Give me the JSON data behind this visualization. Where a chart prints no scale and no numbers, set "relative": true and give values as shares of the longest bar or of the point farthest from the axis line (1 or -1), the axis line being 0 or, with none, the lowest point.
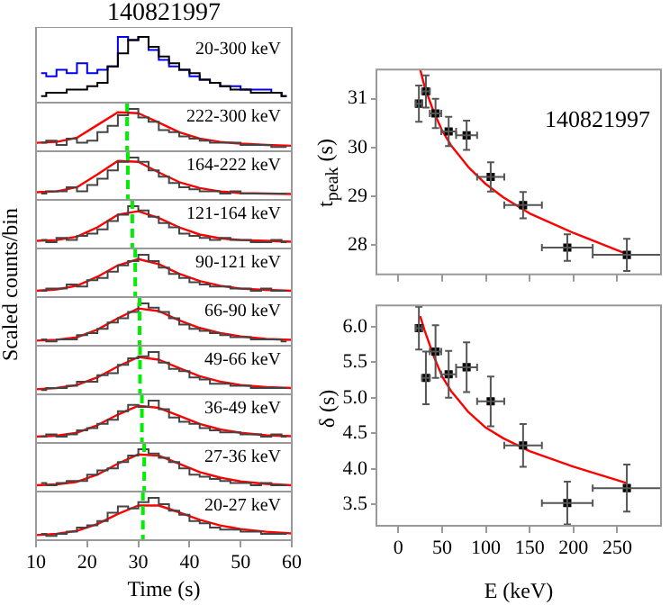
{
  "chart_data": [
    {
      "type": "step",
      "title": "140821997",
      "ylabel": "Scaled counts/bin",
      "relative": true,
      "tick_labels": false,
      "xlim": [
        10,
        60
      ],
      "xticks": [
        10,
        20,
        30,
        40,
        50,
        60
      ],
      "x": [
        11,
        13,
        15,
        17,
        19,
        21,
        23,
        25,
        27,
        29,
        31,
        33,
        35,
        37,
        39,
        41,
        43,
        45,
        47,
        49,
        51,
        53,
        55,
        57,
        59
      ],
      "annotations": [
        "20-300 keV"
      ],
      "series": [
        {
          "color": "#000000",
          "values": [
            0.1,
            0.15,
            0.15,
            0.2,
            0.2,
            0.25,
            0.3,
            0.55,
            0.75,
            0.95,
            1.0,
            0.85,
            0.7,
            0.6,
            0.5,
            0.45,
            0.35,
            0.3,
            0.25,
            0.2,
            0.2,
            0.15,
            0.15,
            0.15,
            0.1
          ]
        },
        {
          "color": "#0000ee",
          "values": [
            0.45,
            0.4,
            0.5,
            0.45,
            0.6,
            0.45,
            0.5,
            0.55,
            1.0,
            0.95,
            1.0,
            0.8,
            0.65,
            0.55,
            0.5,
            0.4,
            0.35,
            0.3,
            0.25,
            0.25,
            0.2,
            0.2,
            0.2,
            0.15,
            0.1
          ]
        }
      ]
    },
    {
      "type": "step",
      "relative": true,
      "tick_labels": false,
      "xlim": [
        10,
        60
      ],
      "xticks": [
        10,
        20,
        30,
        40,
        50,
        60
      ],
      "x": [
        11,
        13,
        15,
        17,
        19,
        21,
        23,
        25,
        27,
        29,
        31,
        33,
        35,
        37,
        39,
        41,
        43,
        45,
        47,
        49,
        51,
        53,
        55,
        57,
        59
      ],
      "annotations": [
        "222-300 keV"
      ],
      "ref_lines": [
        {
          "axis": "x",
          "value": 27.8,
          "color": "#00ee00",
          "line_style": "dashed"
        }
      ],
      "series": [
        {
          "color": "#444444",
          "values": [
            0.2,
            0.25,
            0.15,
            0.3,
            0.2,
            0.25,
            0.45,
            0.6,
            0.85,
            1.0,
            0.8,
            0.7,
            0.5,
            0.45,
            0.35,
            0.3,
            0.25,
            0.2,
            0.2,
            0.2,
            0.15,
            0.15,
            0.15,
            0.1,
            0.1
          ]
        },
        {
          "type": "line",
          "color": "#ff0000",
          "x": [
            10,
            14,
            18,
            22,
            26,
            30,
            34,
            38,
            42,
            46,
            50,
            55,
            60
          ],
          "values": [
            0.2,
            0.22,
            0.32,
            0.62,
            0.92,
            0.9,
            0.68,
            0.45,
            0.3,
            0.22,
            0.18,
            0.15,
            0.13
          ]
        }
      ]
    },
    {
      "type": "step",
      "relative": true,
      "tick_labels": false,
      "xlim": [
        10,
        60
      ],
      "xticks": [
        10,
        20,
        30,
        40,
        50,
        60
      ],
      "x": [
        11,
        13,
        15,
        17,
        19,
        21,
        23,
        25,
        27,
        29,
        31,
        33,
        35,
        37,
        39,
        41,
        43,
        45,
        47,
        49,
        51,
        53,
        55,
        57,
        59
      ],
      "annotations": [
        "164-222 keV"
      ],
      "ref_lines": [
        {
          "axis": "x",
          "value": 27.95,
          "color": "#00ee00",
          "line_style": "dashed"
        }
      ],
      "series": [
        {
          "color": "#444444",
          "values": [
            0.15,
            0.2,
            0.2,
            0.3,
            0.2,
            0.35,
            0.5,
            0.7,
            0.9,
            1.0,
            0.9,
            0.7,
            0.55,
            0.4,
            0.3,
            0.25,
            0.2,
            0.2,
            0.15,
            0.2,
            0.15,
            0.15,
            0.15,
            0.15,
            0.15
          ]
        },
        {
          "type": "line",
          "color": "#ff0000",
          "x": [
            10,
            14,
            18,
            22,
            26,
            30,
            34,
            38,
            42,
            46,
            50,
            55,
            60
          ],
          "values": [
            0.18,
            0.2,
            0.3,
            0.6,
            0.92,
            0.9,
            0.65,
            0.42,
            0.28,
            0.2,
            0.16,
            0.15,
            0.14
          ]
        }
      ]
    },
    {
      "type": "step",
      "relative": true,
      "tick_labels": false,
      "xlim": [
        10,
        60
      ],
      "xticks": [
        10,
        20,
        30,
        40,
        50,
        60
      ],
      "x": [
        11,
        13,
        15,
        17,
        19,
        21,
        23,
        25,
        27,
        29,
        31,
        33,
        35,
        37,
        39,
        41,
        43,
        45,
        47,
        49,
        51,
        53,
        55,
        57,
        59
      ],
      "annotations": [
        "121-164 keV"
      ],
      "ref_lines": [
        {
          "axis": "x",
          "value": 28.82,
          "color": "#00ee00",
          "line_style": "dashed"
        }
      ],
      "series": [
        {
          "color": "#444444",
          "values": [
            0.2,
            0.15,
            0.25,
            0.2,
            0.3,
            0.35,
            0.45,
            0.65,
            0.8,
            1.0,
            0.9,
            0.75,
            0.6,
            0.5,
            0.35,
            0.3,
            0.25,
            0.2,
            0.25,
            0.2,
            0.2,
            0.15,
            0.15,
            0.2,
            0.15
          ]
        },
        {
          "type": "line",
          "color": "#ff0000",
          "x": [
            10,
            14,
            18,
            22,
            26,
            30,
            34,
            38,
            42,
            46,
            50,
            55,
            60
          ],
          "values": [
            0.18,
            0.2,
            0.28,
            0.5,
            0.8,
            0.88,
            0.72,
            0.5,
            0.33,
            0.24,
            0.2,
            0.18,
            0.16
          ]
        }
      ]
    },
    {
      "type": "step",
      "relative": true,
      "tick_labels": false,
      "xlim": [
        10,
        60
      ],
      "xticks": [
        10,
        20,
        30,
        40,
        50,
        60
      ],
      "x": [
        11,
        13,
        15,
        17,
        19,
        21,
        23,
        25,
        27,
        29,
        31,
        33,
        35,
        37,
        39,
        41,
        43,
        45,
        47,
        49,
        51,
        53,
        55,
        57,
        59
      ],
      "annotations": [
        "90-121 keV"
      ],
      "ref_lines": [
        {
          "axis": "x",
          "value": 29.4,
          "color": "#00ee00",
          "line_style": "dashed"
        }
      ],
      "series": [
        {
          "color": "#444444",
          "values": [
            0.15,
            0.2,
            0.2,
            0.3,
            0.25,
            0.4,
            0.45,
            0.6,
            0.75,
            0.85,
            1.0,
            0.85,
            0.7,
            0.55,
            0.45,
            0.35,
            0.3,
            0.25,
            0.25,
            0.2,
            0.2,
            0.15,
            0.2,
            0.15,
            0.15
          ]
        },
        {
          "type": "line",
          "color": "#ff0000",
          "x": [
            10,
            14,
            18,
            22,
            26,
            30,
            34,
            38,
            42,
            46,
            50,
            55,
            60
          ],
          "values": [
            0.15,
            0.18,
            0.27,
            0.48,
            0.75,
            0.9,
            0.78,
            0.55,
            0.38,
            0.27,
            0.2,
            0.17,
            0.15
          ]
        }
      ]
    },
    {
      "type": "step",
      "relative": true,
      "tick_labels": false,
      "xlim": [
        10,
        60
      ],
      "xticks": [
        10,
        20,
        30,
        40,
        50,
        60
      ],
      "x": [
        11,
        13,
        15,
        17,
        19,
        21,
        23,
        25,
        27,
        29,
        31,
        33,
        35,
        37,
        39,
        41,
        43,
        45,
        47,
        49,
        51,
        53,
        55,
        57,
        59
      ],
      "annotations": [
        "66-90 keV"
      ],
      "ref_lines": [
        {
          "axis": "x",
          "value": 30.25,
          "color": "#00ee00",
          "line_style": "dashed"
        }
      ],
      "series": [
        {
          "color": "#444444",
          "values": [
            0.15,
            0.1,
            0.15,
            0.15,
            0.25,
            0.3,
            0.4,
            0.55,
            0.65,
            0.8,
            1.0,
            0.9,
            0.8,
            0.65,
            0.5,
            0.4,
            0.35,
            0.3,
            0.25,
            0.2,
            0.2,
            0.15,
            0.15,
            0.15,
            0.1
          ]
        },
        {
          "type": "line",
          "color": "#ff0000",
          "x": [
            10,
            14,
            18,
            22,
            26,
            30,
            34,
            38,
            42,
            46,
            50,
            55,
            60
          ],
          "values": [
            0.12,
            0.14,
            0.2,
            0.38,
            0.65,
            0.88,
            0.82,
            0.6,
            0.42,
            0.3,
            0.22,
            0.16,
            0.14
          ]
        }
      ]
    },
    {
      "type": "step",
      "relative": true,
      "tick_labels": false,
      "xlim": [
        10,
        60
      ],
      "xticks": [
        10,
        20,
        30,
        40,
        50,
        60
      ],
      "x": [
        11,
        13,
        15,
        17,
        19,
        21,
        23,
        25,
        27,
        29,
        31,
        33,
        35,
        37,
        39,
        41,
        43,
        45,
        47,
        49,
        51,
        53,
        55,
        57,
        59
      ],
      "annotations": [
        "49-66 keV"
      ],
      "ref_lines": [
        {
          "axis": "x",
          "value": 30.33,
          "color": "#00ee00",
          "line_style": "dashed"
        }
      ],
      "series": [
        {
          "color": "#444444",
          "values": [
            0.1,
            0.15,
            0.15,
            0.2,
            0.3,
            0.3,
            0.45,
            0.5,
            0.7,
            0.85,
            0.9,
            1.0,
            0.75,
            0.6,
            0.55,
            0.4,
            0.35,
            0.25,
            0.25,
            0.2,
            0.2,
            0.15,
            0.15,
            0.15,
            0.15
          ]
        },
        {
          "type": "line",
          "color": "#ff0000",
          "x": [
            10,
            14,
            18,
            22,
            26,
            30,
            34,
            38,
            42,
            46,
            50,
            55,
            60
          ],
          "values": [
            0.12,
            0.15,
            0.22,
            0.4,
            0.66,
            0.88,
            0.82,
            0.62,
            0.43,
            0.3,
            0.22,
            0.17,
            0.15
          ]
        }
      ]
    },
    {
      "type": "step",
      "relative": true,
      "tick_labels": false,
      "xlim": [
        10,
        60
      ],
      "xticks": [
        10,
        20,
        30,
        40,
        50,
        60
      ],
      "x": [
        11,
        13,
        15,
        17,
        19,
        21,
        23,
        25,
        27,
        29,
        31,
        33,
        35,
        37,
        39,
        41,
        43,
        45,
        47,
        49,
        51,
        53,
        55,
        57,
        59
      ],
      "annotations": [
        "36-49 keV"
      ],
      "ref_lines": [
        {
          "axis": "x",
          "value": 30.7,
          "color": "#00ee00",
          "line_style": "dashed"
        }
      ],
      "series": [
        {
          "color": "#444444",
          "values": [
            0.15,
            0.2,
            0.15,
            0.2,
            0.3,
            0.35,
            0.45,
            0.55,
            0.75,
            0.9,
            0.85,
            1.0,
            0.8,
            0.6,
            0.5,
            0.45,
            0.35,
            0.3,
            0.25,
            0.25,
            0.2,
            0.2,
            0.15,
            0.2,
            0.15
          ]
        },
        {
          "type": "line",
          "color": "#ff0000",
          "x": [
            10,
            14,
            18,
            22,
            26,
            30,
            34,
            38,
            42,
            46,
            50,
            55,
            60
          ],
          "values": [
            0.15,
            0.17,
            0.24,
            0.42,
            0.67,
            0.88,
            0.83,
            0.64,
            0.45,
            0.32,
            0.24,
            0.18,
            0.16
          ]
        }
      ]
    },
    {
      "type": "step",
      "relative": true,
      "tick_labels": false,
      "xlim": [
        10,
        60
      ],
      "xticks": [
        10,
        20,
        30,
        40,
        50,
        60
      ],
      "x": [
        11,
        13,
        15,
        17,
        19,
        21,
        23,
        25,
        27,
        29,
        31,
        33,
        35,
        37,
        39,
        41,
        43,
        45,
        47,
        49,
        51,
        53,
        55,
        57,
        59
      ],
      "annotations": [
        "27-36 keV"
      ],
      "ref_lines": [
        {
          "axis": "x",
          "value": 31.15,
          "color": "#00ee00",
          "line_style": "dashed"
        }
      ],
      "series": [
        {
          "color": "#444444",
          "values": [
            0.2,
            0.15,
            0.2,
            0.25,
            0.25,
            0.4,
            0.5,
            0.55,
            0.7,
            0.85,
            1.0,
            0.9,
            0.8,
            0.7,
            0.55,
            0.4,
            0.35,
            0.3,
            0.25,
            0.2,
            0.2,
            0.15,
            0.2,
            0.15,
            0.15
          ]
        },
        {
          "type": "line",
          "color": "#ff0000",
          "x": [
            10,
            14,
            18,
            22,
            26,
            30,
            34,
            38,
            42,
            46,
            50,
            55,
            60
          ],
          "values": [
            0.15,
            0.17,
            0.23,
            0.4,
            0.66,
            0.88,
            0.85,
            0.66,
            0.46,
            0.33,
            0.24,
            0.18,
            0.15
          ]
        }
      ]
    },
    {
      "type": "step",
      "relative": true,
      "tick_labels": "x",
      "xlabel": "Time (s)",
      "xlim": [
        10,
        60
      ],
      "xticks": [
        10,
        20,
        30,
        40,
        50,
        60
      ],
      "x": [
        11,
        13,
        15,
        17,
        19,
        21,
        23,
        25,
        27,
        29,
        31,
        33,
        35,
        37,
        39,
        41,
        43,
        45,
        47,
        49,
        51,
        53,
        55,
        57,
        59
      ],
      "annotations": [
        "20-27 keV"
      ],
      "ref_lines": [
        {
          "axis": "x",
          "value": 30.9,
          "color": "#00ee00",
          "line_style": "dashed"
        }
      ],
      "series": [
        {
          "color": "#444444",
          "values": [
            0.15,
            0.1,
            0.15,
            0.2,
            0.3,
            0.35,
            0.45,
            0.65,
            0.8,
            0.75,
            0.9,
            1.0,
            0.85,
            0.7,
            0.6,
            0.45,
            0.4,
            0.3,
            0.25,
            0.25,
            0.2,
            0.2,
            0.15,
            0.15,
            0.15
          ]
        },
        {
          "type": "line",
          "color": "#ff0000",
          "x": [
            10,
            14,
            18,
            22,
            26,
            30,
            34,
            38,
            42,
            46,
            50,
            55,
            60
          ],
          "values": [
            0.12,
            0.15,
            0.22,
            0.38,
            0.62,
            0.82,
            0.82,
            0.66,
            0.48,
            0.35,
            0.26,
            0.2,
            0.16
          ]
        }
      ]
    },
    {
      "type": "scatter",
      "ylabel": "t$_{peak}$ (s)",
      "tick_labels": "y",
      "marker": "square",
      "xlim": [
        -25,
        300
      ],
      "xticks": [
        0,
        50,
        100,
        150,
        200,
        250
      ],
      "ylim": [
        27.4,
        31.6
      ],
      "yticks": [
        28,
        29,
        30,
        31
      ],
      "annotations": [
        "140821997"
      ],
      "series": [
        {
          "color": "#000000",
          "x": [
            23.5,
            31.5,
            42.5,
            57.5,
            78,
            105.5,
            142.5,
            193,
            261
          ],
          "values": [
            30.9,
            31.15,
            30.7,
            30.33,
            30.25,
            29.4,
            28.82,
            27.95,
            27.8
          ],
          "errors": [
            0.37,
            0.33,
            0.3,
            0.3,
            0.3,
            0.3,
            0.27,
            0.27,
            0.33
          ],
          "xerrors": [
            3.5,
            4.5,
            6.5,
            8.5,
            12,
            15.5,
            21.5,
            29,
            39
          ]
        },
        {
          "type": "line",
          "marker": "none",
          "color": "#ff0000",
          "x": [
            25,
            30,
            40,
            50,
            60,
            80,
            100,
            120,
            150,
            200,
            261
          ],
          "values": [
            31.6,
            31.25,
            30.75,
            30.35,
            30.05,
            29.6,
            29.25,
            28.98,
            28.65,
            28.25,
            27.82
          ]
        }
      ]
    },
    {
      "type": "scatter",
      "ylabel": "δ (s)",
      "xlabel": "E (keV)",
      "marker": "square",
      "xlim": [
        -25,
        300
      ],
      "xticks": [
        0,
        50,
        100,
        150,
        200,
        250
      ],
      "ylim": [
        3.2,
        6.3
      ],
      "yticks": [
        {
          "value": 3.5,
          "label": "3.5"
        },
        {
          "value": 4,
          "label": "4.0"
        },
        {
          "value": 4.5,
          "label": "4.5"
        },
        {
          "value": 5,
          "label": "5.0"
        },
        {
          "value": 5.5,
          "label": "5.5"
        },
        {
          "value": 6,
          "label": "6.0"
        }
      ],
      "series": [
        {
          "color": "#000000",
          "x": [
            23.5,
            31.5,
            42.5,
            57.5,
            78,
            105.5,
            142.5,
            193,
            261
          ],
          "values": [
            5.98,
            5.28,
            5.65,
            5.33,
            5.43,
            4.95,
            4.33,
            3.52,
            3.73
          ],
          "errors": [
            0.3,
            0.37,
            0.37,
            0.33,
            0.35,
            0.35,
            0.3,
            0.3,
            0.33
          ],
          "xerrors": [
            3.5,
            4.5,
            6.5,
            8.5,
            12,
            15.5,
            21.5,
            29,
            39
          ]
        },
        {
          "type": "line",
          "marker": "none",
          "color": "#ff0000",
          "x": [
            25,
            30,
            40,
            50,
            60,
            80,
            100,
            120,
            150,
            200,
            261
          ],
          "values": [
            6.15,
            5.95,
            5.6,
            5.3,
            5.1,
            4.8,
            4.58,
            4.43,
            4.25,
            4.03,
            3.8
          ]
        }
      ]
    }
  ]
}
